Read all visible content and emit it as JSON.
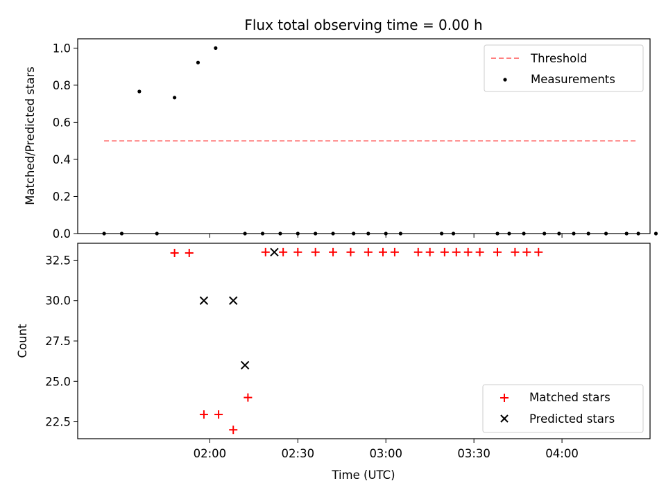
{
  "title": "Flux total observing time = 0.00 h",
  "chart_data": [
    {
      "type": "scatter",
      "panel": "top",
      "ylabel": "Matched/Predicted stars",
      "xlabel": "",
      "ylim": [
        0.0,
        1.05
      ],
      "yticks": [
        0.0,
        0.2,
        0.4,
        0.6,
        0.8,
        1.0
      ],
      "ytick_labels": [
        "0.0",
        "0.2",
        "0.4",
        "0.6",
        "0.8",
        "1.0"
      ],
      "xlim": [
        "01:15",
        "04:30"
      ],
      "legend_position": "upper right",
      "threshold": {
        "name": "Threshold",
        "value": 0.5,
        "x_start": "01:24",
        "x_end": "04:26",
        "color": "#ff7f7f",
        "style": "dashed"
      },
      "series": [
        {
          "name": "Measurements",
          "color": "#000000",
          "marker": "dot",
          "x": [
            "01:24",
            "01:30",
            "01:36",
            "01:42",
            "01:48",
            "01:56",
            "02:02",
            "02:12",
            "02:18",
            "02:24",
            "02:30",
            "02:36",
            "02:42",
            "02:49",
            "02:54",
            "03:00",
            "03:05",
            "03:19",
            "03:23",
            "03:38",
            "03:42",
            "03:47",
            "03:54",
            "03:59",
            "04:04",
            "04:09",
            "04:15",
            "04:22",
            "04:26",
            "04:32"
          ],
          "y": [
            0.0,
            0.0,
            0.766,
            0.0,
            0.733,
            0.922,
            1.0,
            0.0,
            0.0,
            0.0,
            0.0,
            0.0,
            0.0,
            0.0,
            0.0,
            0.0,
            0.0,
            0.0,
            0.0,
            0.0,
            0.0,
            0.0,
            0.0,
            0.0,
            0.0,
            0.0,
            0.0,
            0.0,
            0.0,
            0.0
          ]
        }
      ]
    },
    {
      "type": "scatter",
      "panel": "bottom",
      "ylabel": "Count",
      "xlabel": "Time (UTC)",
      "ylim": [
        21.45,
        33.55
      ],
      "yticks": [
        22.5,
        25.0,
        27.5,
        30.0,
        32.5
      ],
      "ytick_labels": [
        "22.5",
        "25.0",
        "27.5",
        "30.0",
        "32.5"
      ],
      "xticks": [
        "02:00",
        "02:30",
        "03:00",
        "03:30",
        "04:00"
      ],
      "xtick_labels": [
        "02:00",
        "02:30",
        "03:00",
        "03:30",
        "04:00"
      ],
      "legend_position": "lower right",
      "series": [
        {
          "name": "Matched stars",
          "color": "#ff0000",
          "marker": "plus",
          "x": [
            "01:48",
            "01:53",
            "01:58",
            "02:03",
            "02:08",
            "02:13",
            "02:19",
            "02:25",
            "02:30",
            "02:36",
            "02:42",
            "02:48",
            "02:54",
            "02:59",
            "03:03",
            "03:11",
            "03:15",
            "03:20",
            "03:24",
            "03:28",
            "03:32",
            "03:38",
            "03:44",
            "03:48",
            "03:52"
          ],
          "y": [
            32.95,
            32.95,
            22.95,
            22.95,
            22.0,
            24.0,
            33.0,
            33.0,
            33.0,
            33.0,
            33.0,
            33.0,
            33.0,
            33.0,
            33.0,
            33.0,
            33.0,
            33.0,
            33.0,
            33.0,
            33.0,
            33.0,
            33.0,
            33.0,
            33.0
          ]
        },
        {
          "name": "Predicted stars",
          "color": "#000000",
          "marker": "x",
          "x": [
            "01:58",
            "02:08",
            "02:12",
            "02:22"
          ],
          "y": [
            30.0,
            30.0,
            26.0,
            33.0
          ]
        }
      ]
    }
  ]
}
